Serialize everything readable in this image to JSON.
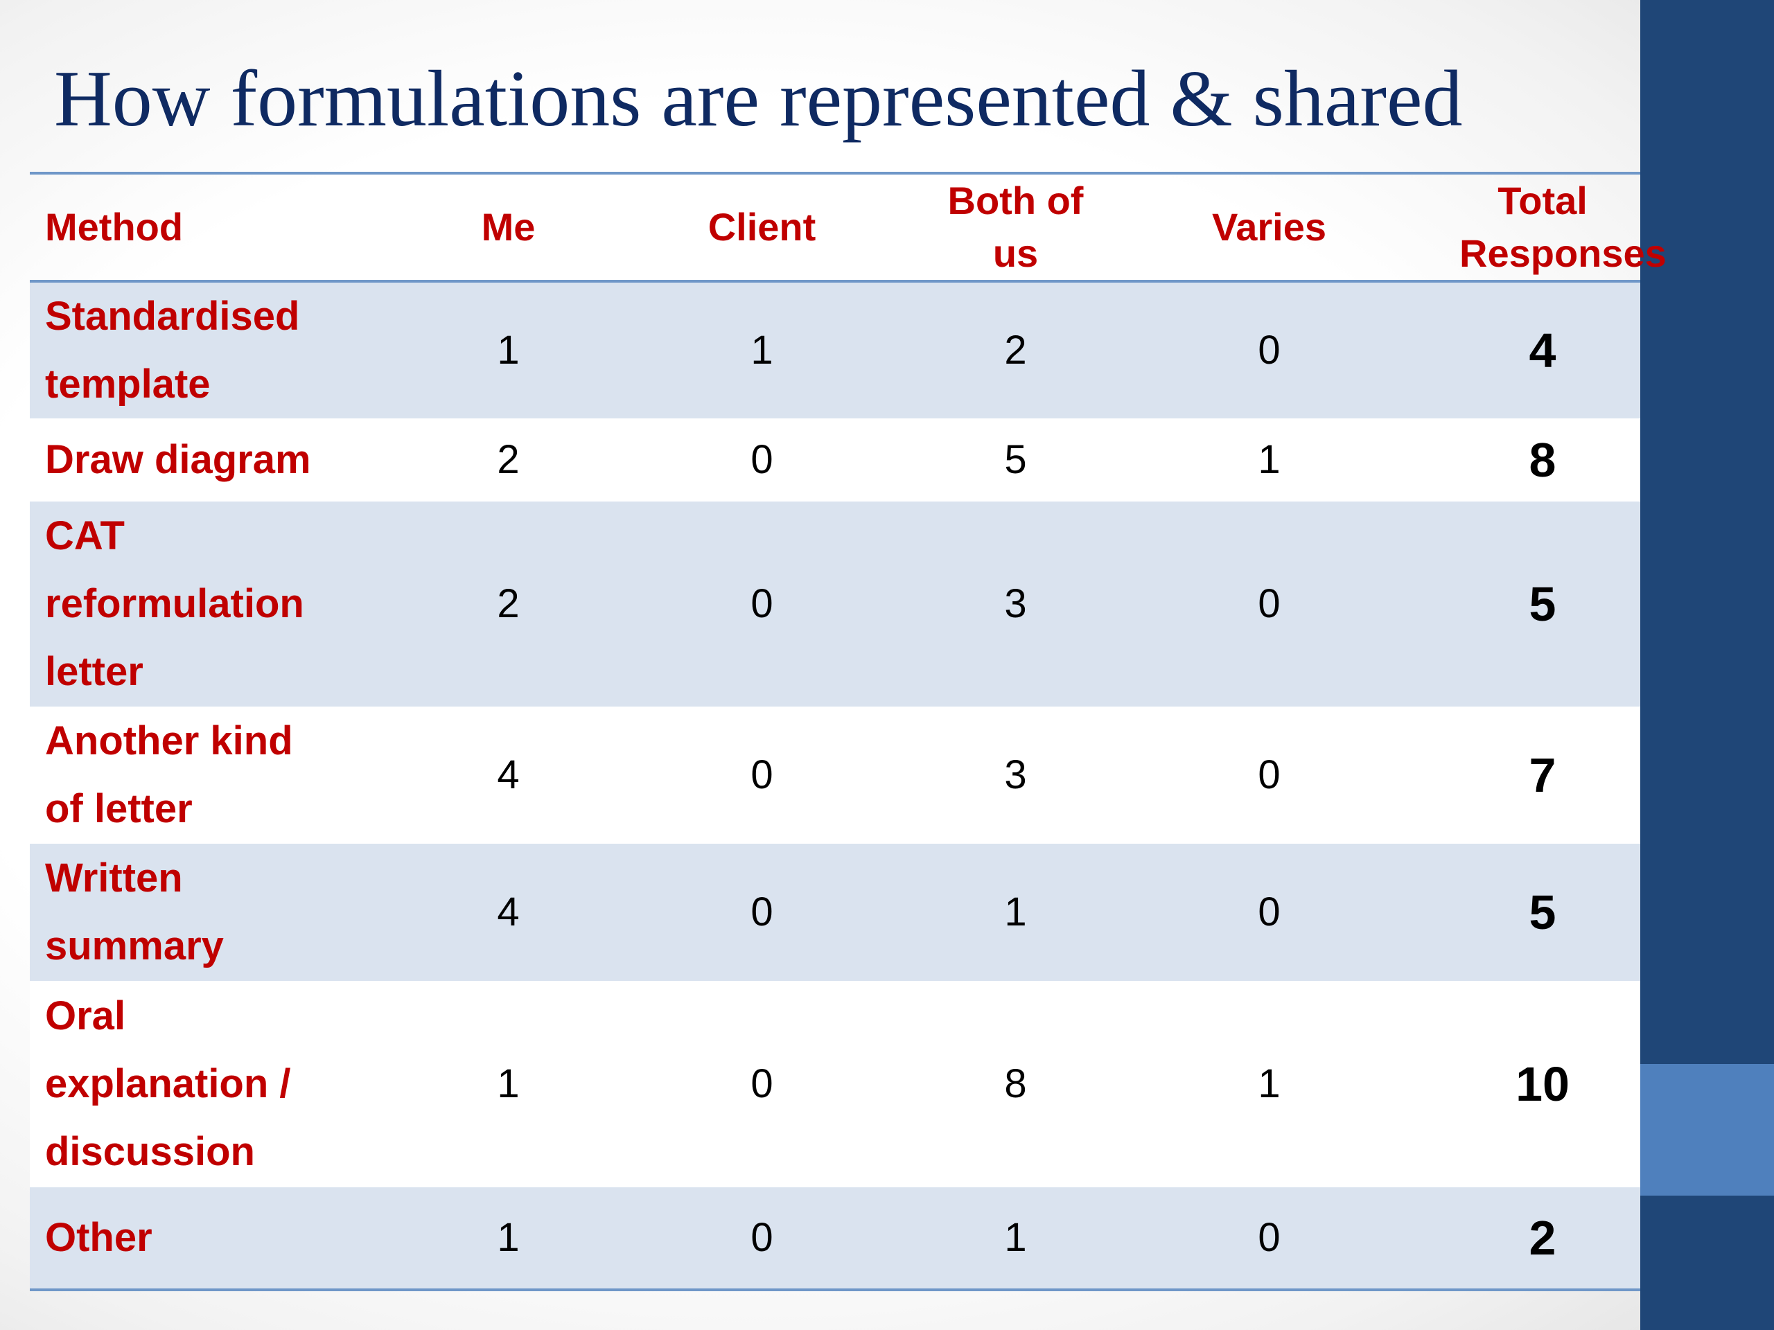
{
  "title": "How formulations are represented & shared",
  "table": {
    "headers": [
      "Method",
      "Me",
      "Client",
      "Both of us",
      "Varies",
      "Total Responses"
    ],
    "rows": [
      {
        "method": "Standardised template",
        "me": "1",
        "client": "1",
        "both": "2",
        "varies": "0",
        "total": "4"
      },
      {
        "method": "Draw diagram",
        "me": "2",
        "client": "0",
        "both": "5",
        "varies": "1",
        "total": "8"
      },
      {
        "method": "CAT reformulation letter",
        "me": "2",
        "client": "0",
        "both": "3",
        "varies": "0",
        "total": "5"
      },
      {
        "method": "Another kind of letter",
        "me": "4",
        "client": "0",
        "both": "3",
        "varies": "0",
        "total": "7"
      },
      {
        "method": "Written summary",
        "me": "4",
        "client": "0",
        "both": "1",
        "varies": "0",
        "total": "5"
      },
      {
        "method": "Oral explanation / discussion",
        "me": "1",
        "client": "0",
        "both": "8",
        "varies": "1",
        "total": "10"
      },
      {
        "method": "Other",
        "me": "1",
        "client": "0",
        "both": "1",
        "varies": "0",
        "total": "2"
      }
    ]
  },
  "colors": {
    "title": "#0f2a62",
    "header_text": "#c00000",
    "row_shade": "#dae3ef",
    "sidebar": "#1f4677",
    "sidebar_accent": "#4f80bd",
    "rule": "#6f97c8"
  }
}
